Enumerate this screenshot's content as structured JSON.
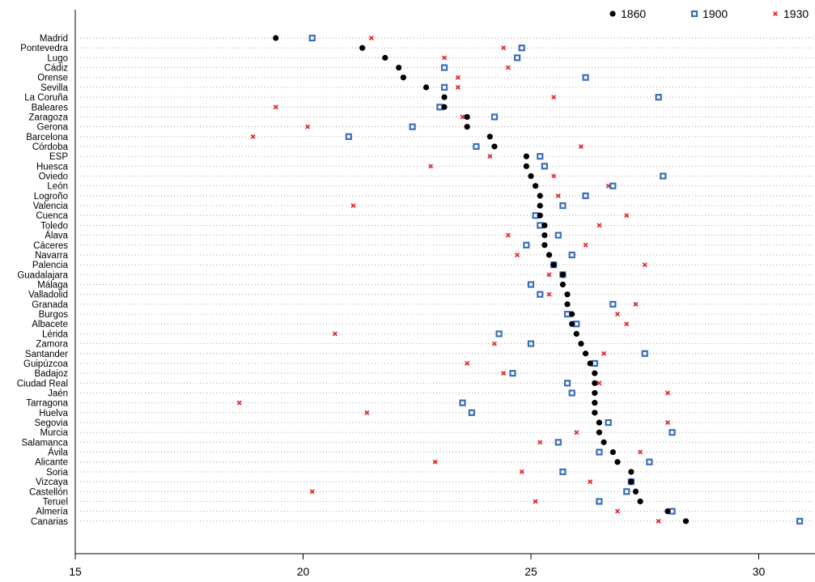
{
  "chart_data": {
    "type": "scatter",
    "title": "",
    "xlabel": "",
    "ylabel": "",
    "xlim": [
      15,
      31.2
    ],
    "xticks": [
      15,
      20,
      25,
      30
    ],
    "grid": "dotted horizontal guides per category",
    "legend_position": "top-right",
    "highlight_category": "ESP",
    "highlight_color": "#e0262b",
    "categories": [
      "Madrid",
      "Pontevedra",
      "Lugo",
      "Cádiz",
      "Orense",
      "Sevilla",
      "La Coruña",
      "Baleares",
      "Zaragoza",
      "Gerona",
      "Barcelona",
      "Córdoba",
      "ESP",
      "Huesca",
      "Oviedo",
      "León",
      "Logroño",
      "Valencia",
      "Cuenca",
      "Toledo",
      "Álava",
      "Cáceres",
      "Navarra",
      "Palencia",
      "Guadalajara",
      "Málaga",
      "Valladolid",
      "Granada",
      "Burgos",
      "Albacete",
      "Lérida",
      "Zamora",
      "Santander",
      "Guipúzcoa",
      "Badajoz",
      "Ciudad Real",
      "Jaén",
      "Tarragona",
      "Huelva",
      "Segovia",
      "Murcia",
      "Salamanca",
      "Ávila",
      "Alicante",
      "Soria",
      "Vizcaya",
      "Castellón",
      "Teruel",
      "Almería",
      "Canarias"
    ],
    "series": [
      {
        "name": "1860",
        "marker": "circle",
        "color": "#000000",
        "values": [
          19.4,
          21.3,
          21.8,
          22.1,
          22.2,
          22.7,
          23.1,
          23.1,
          23.6,
          23.6,
          24.1,
          24.2,
          24.9,
          24.9,
          25.0,
          25.1,
          25.2,
          25.2,
          25.2,
          25.3,
          25.3,
          25.3,
          25.4,
          25.5,
          25.7,
          25.7,
          25.8,
          25.8,
          25.9,
          25.9,
          26.0,
          26.1,
          26.2,
          26.3,
          26.4,
          26.4,
          26.4,
          26.4,
          26.4,
          26.5,
          26.5,
          26.6,
          26.8,
          26.9,
          27.2,
          27.2,
          27.3,
          27.4,
          28.0,
          28.4
        ]
      },
      {
        "name": "1900",
        "marker": "square",
        "color": "#3a6fb6",
        "values": [
          20.2,
          24.8,
          24.7,
          23.1,
          26.2,
          23.1,
          27.8,
          23.0,
          24.2,
          22.4,
          21.0,
          23.8,
          25.2,
          25.3,
          27.9,
          26.8,
          26.2,
          25.7,
          25.1,
          25.2,
          25.6,
          24.9,
          25.9,
          25.5,
          25.7,
          25.0,
          25.2,
          26.8,
          25.8,
          26.0,
          24.3,
          25.0,
          27.5,
          26.4,
          24.6,
          25.8,
          25.9,
          23.5,
          23.7,
          26.7,
          28.1,
          25.6,
          26.5,
          27.6,
          25.7,
          27.2,
          27.1,
          26.5,
          28.1,
          30.9
        ]
      },
      {
        "name": "1930",
        "marker": "x",
        "color": "#e0262b",
        "values": [
          21.5,
          24.4,
          23.1,
          24.5,
          23.4,
          23.4,
          25.5,
          19.4,
          23.5,
          20.1,
          18.9,
          26.1,
          24.1,
          22.8,
          25.5,
          26.7,
          25.6,
          21.1,
          27.1,
          26.5,
          24.5,
          26.2,
          24.7,
          27.5,
          25.4,
          25.7,
          25.4,
          27.3,
          26.9,
          27.1,
          20.7,
          24.2,
          26.6,
          23.6,
          24.4,
          26.5,
          28.0,
          18.6,
          21.4,
          28.0,
          26.0,
          25.2,
          27.4,
          22.9,
          24.8,
          26.3,
          20.2,
          25.1,
          26.9,
          27.8
        ]
      }
    ]
  }
}
